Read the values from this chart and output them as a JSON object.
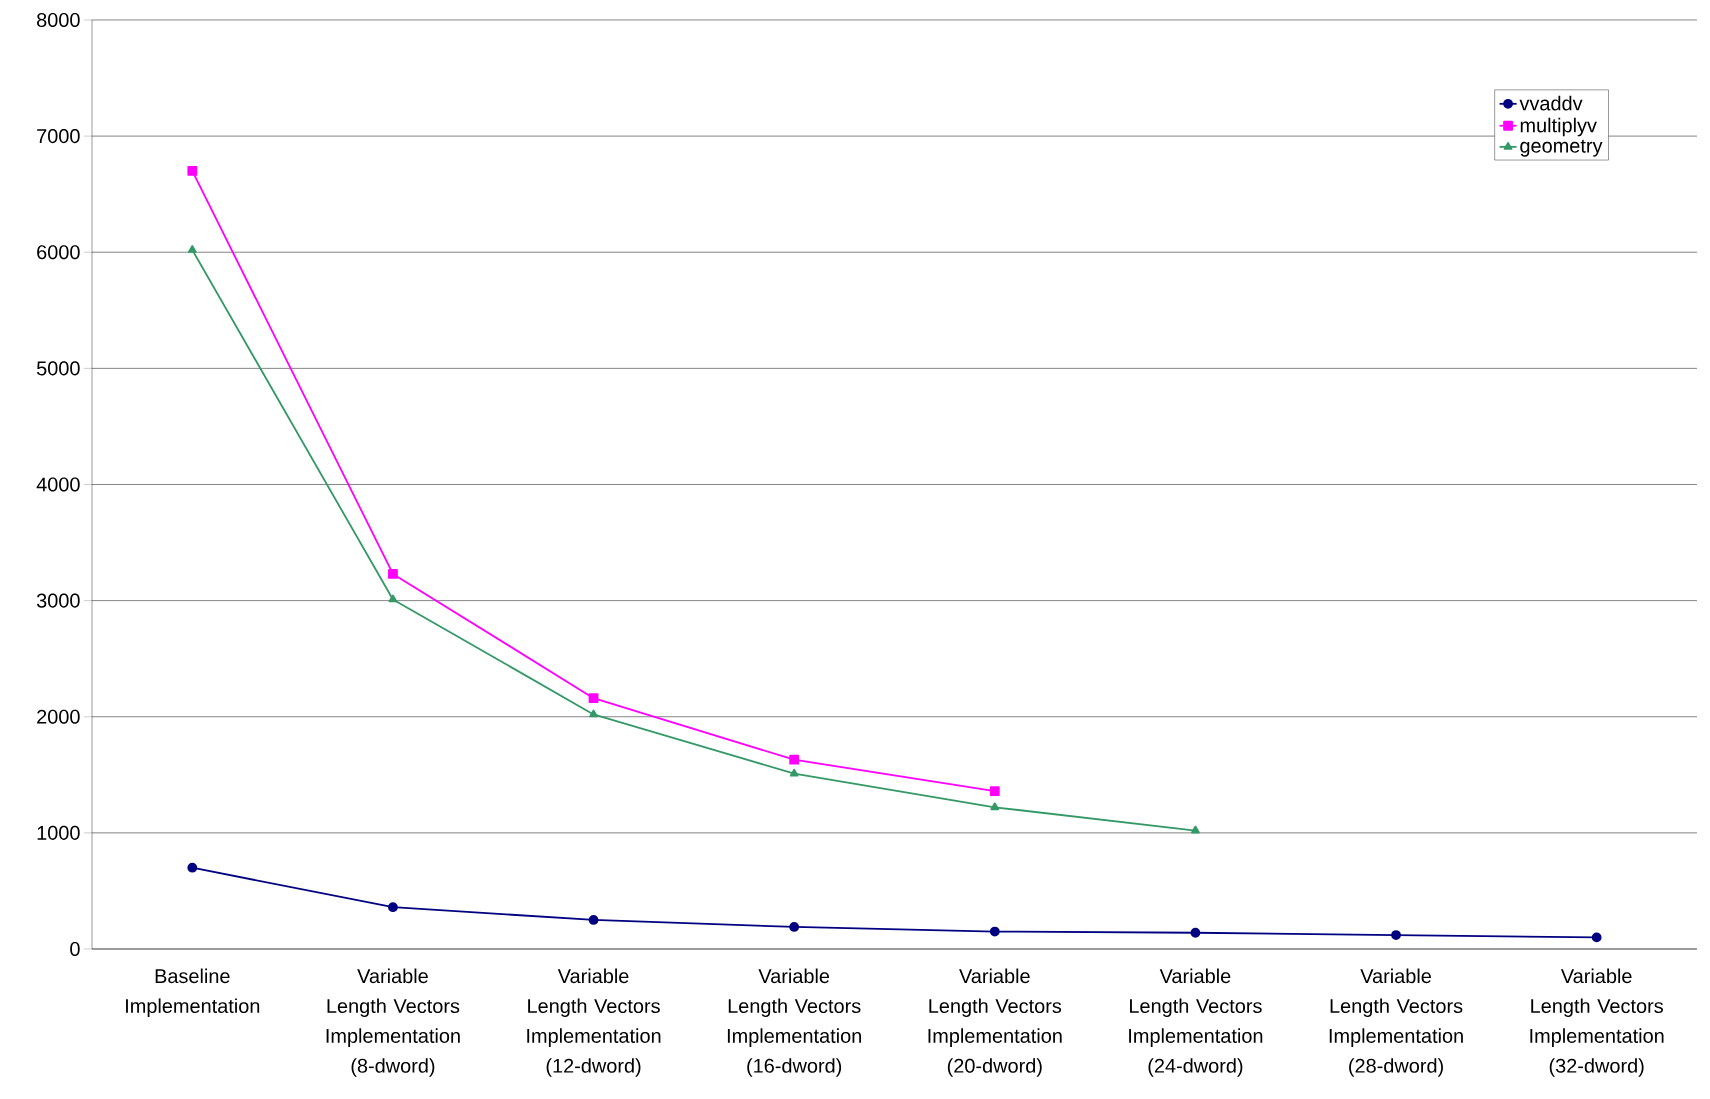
{
  "chart_data": {
    "type": "line",
    "categories": [
      "Baseline Implementation",
      "Variable Length Vectors Implementation (8-dword)",
      "Variable Length Vectors Implementation (12-dword)",
      "Variable Length Vectors Implementation (16-dword)",
      "Variable Length Vectors Implementation (20-dword)",
      "Variable Length Vectors Implementation (24-dword)",
      "Variable Length Vectors Implementation (28-dword)",
      "Variable Length Vectors Implementation (32-dword)"
    ],
    "series": [
      {
        "name": "vvaddv",
        "color": "#000080",
        "marker": "circle",
        "values": [
          700,
          360,
          250,
          190,
          150,
          140,
          120,
          100
        ]
      },
      {
        "name": "multiplyv",
        "color": "#ff00ff",
        "marker": "square",
        "values": [
          6700,
          3230,
          2160,
          1630,
          1360,
          null,
          null,
          null
        ]
      },
      {
        "name": "geometry",
        "color": "#339966",
        "marker": "triangle",
        "values": [
          6020,
          3010,
          2020,
          1510,
          1220,
          1020,
          null,
          null
        ]
      }
    ],
    "ylim": [
      0,
      8000
    ],
    "yticks": [
      0,
      1000,
      2000,
      3000,
      4000,
      5000,
      6000,
      7000,
      8000
    ],
    "grid": "y",
    "legend": "top right",
    "line_style": "solid"
  }
}
